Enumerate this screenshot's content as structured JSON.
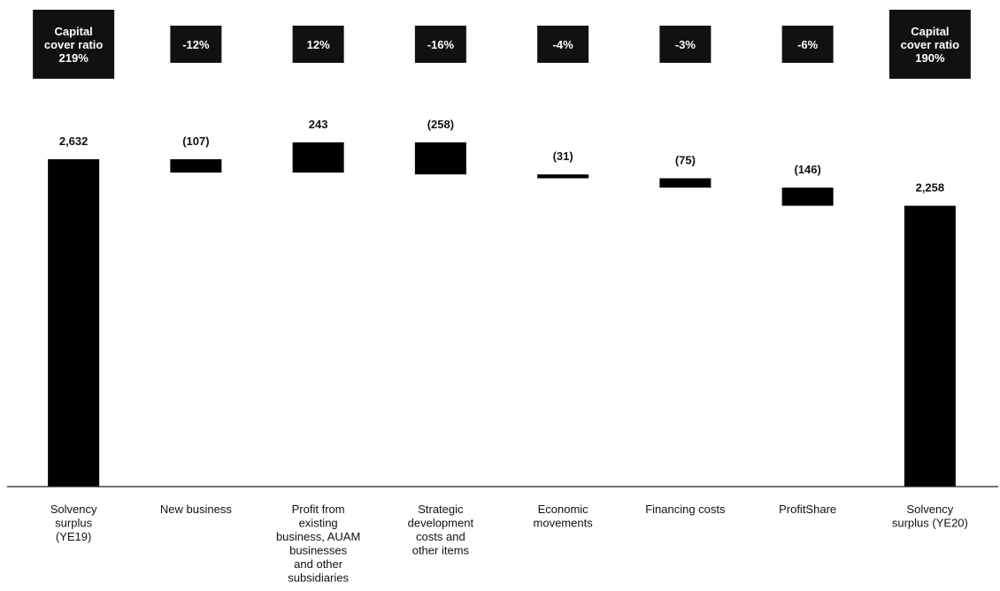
{
  "chart_data": {
    "type": "waterfall",
    "categories": [
      "Solvency surplus (YE19)",
      "New business",
      "Profit from existing business, AUAM businesses and other subsidiaries",
      "Strategic development costs and other items",
      "Economic movements",
      "Financing costs",
      "ProfitShare",
      "Solvency surplus (YE20)"
    ],
    "category_lines": [
      [
        "Solvency",
        "surplus",
        "(YE19)"
      ],
      [
        "New business"
      ],
      [
        "Profit from",
        "existing",
        "business, AUAM",
        "businesses",
        "and other",
        "subsidiaries"
      ],
      [
        "Strategic",
        "development",
        "costs and",
        "other items"
      ],
      [
        "Economic",
        "movements"
      ],
      [
        "Financing costs"
      ],
      [
        "ProfitShare"
      ],
      [
        "Solvency",
        "surplus (YE20)"
      ]
    ],
    "values": [
      2632,
      -107,
      243,
      -258,
      -31,
      -75,
      -146,
      2258
    ],
    "bar_kinds": [
      "total",
      "delta",
      "delta",
      "delta",
      "delta",
      "delta",
      "delta",
      "total"
    ],
    "value_labels": [
      "2,632",
      "(107)",
      "243",
      "(258)",
      "(31)",
      "(75)",
      "(146)",
      "2,258"
    ],
    "box_labels": [
      [
        "Capital",
        "cover ratio",
        "219%"
      ],
      [
        "-12%"
      ],
      [
        "12%"
      ],
      [
        "-16%"
      ],
      [
        "-4%"
      ],
      [
        "-3%"
      ],
      [
        "-6%"
      ],
      [
        "Capital",
        "cover ratio",
        "190%"
      ]
    ],
    "ylim": [
      0,
      2800
    ],
    "grid": false,
    "legend": "none",
    "colors": {
      "bar": "#000000",
      "box": "#111111",
      "axis": "#222222"
    }
  }
}
